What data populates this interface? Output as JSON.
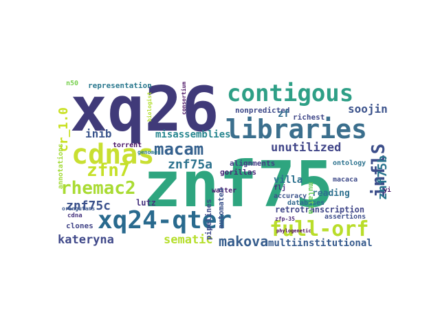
{
  "cloud": {
    "words": [
      {
        "text": "znf75",
        "color": "#2ea57f"
      },
      {
        "text": "xq26",
        "color": "#403a79"
      },
      {
        "text": "contigous",
        "color": "#2e9f86"
      },
      {
        "text": "libraries",
        "color": "#3b6f8d"
      },
      {
        "text": "cdnas",
        "color": "#c8df31"
      },
      {
        "text": "xq24-qter",
        "color": "#296a8e"
      },
      {
        "text": "full-orf",
        "color": "#b9dd2a"
      },
      {
        "text": "macam",
        "color": "#34608d"
      },
      {
        "text": "rhemac2",
        "color": "#a9db33"
      },
      {
        "text": "zfn7",
        "color": "#c5e028"
      },
      {
        "text": "inflS",
        "color": "#3c4e8a"
      },
      {
        "text": "znf75a",
        "color": "#2c728e"
      },
      {
        "text": "znf75b",
        "color": "#2b758e"
      },
      {
        "text": "znf75c",
        "color": "#3b518b"
      },
      {
        "text": "kateryna",
        "color": "#3f4889"
      },
      {
        "text": "makova",
        "color": "#365d8d"
      },
      {
        "text": "unutilized",
        "color": "#404588"
      },
      {
        "text": "sematic",
        "color": "#b5de2b"
      },
      {
        "text": "soojin",
        "color": "#3b528b"
      },
      {
        "text": "inib",
        "color": "#3a548c"
      },
      {
        "text": "misassemblies",
        "color": "#25858e"
      },
      {
        "text": "multiinstitutional",
        "color": "#375b8d"
      },
      {
        "text": "retrotranscription",
        "color": "#404688"
      },
      {
        "text": "representation",
        "color": "#2a788e"
      },
      {
        "text": "nonpredicted",
        "color": "#3e4989"
      },
      {
        "text": "alignments",
        "color": "#433d84"
      },
      {
        "text": "gorillas",
        "color": "#482677"
      },
      {
        "text": "villa",
        "color": "#2c718e"
      },
      {
        "text": "reading",
        "color": "#2d708e"
      },
      {
        "text": "richest",
        "color": "#3f4788"
      },
      {
        "text": "lutz",
        "color": "#46327e"
      },
      {
        "text": "zf",
        "color": "#2f6b8e"
      },
      {
        "text": "torrent",
        "color": "#471164"
      },
      {
        "text": "walter",
        "color": "#481c6e"
      },
      {
        "text": "clones",
        "color": "#414487"
      },
      {
        "text": "cdna",
        "color": "#46337e"
      },
      {
        "text": "orangutans",
        "color": "#39568c"
      },
      {
        "text": "pipelines",
        "color": "#3e4a89"
      },
      {
        "text": "automated",
        "color": "#3b528b"
      },
      {
        "text": "assertions",
        "color": "#3d4d8a"
      },
      {
        "text": "ontology",
        "color": "#2c728e"
      },
      {
        "text": "databases",
        "color": "#31688e"
      },
      {
        "text": "mulatta",
        "color": "#6ccd5a"
      },
      {
        "text": "macaca",
        "color": "#3e4a89"
      },
      {
        "text": "accuracy",
        "color": "#3b528b"
      },
      {
        "text": "flj",
        "color": "#46337e"
      },
      {
        "text": "cr_1.0",
        "color": "#c8e020"
      },
      {
        "text": "annotations",
        "color": "#a2da37"
      },
      {
        "text": "n50",
        "color": "#7ad151"
      },
      {
        "text": "biologist",
        "color": "#b2dd2d"
      },
      {
        "text": "consortium",
        "color": "#470d60"
      },
      {
        "text": "zfp-35",
        "color": "#482475"
      },
      {
        "text": "phylogenetic",
        "color": "#440154"
      },
      {
        "text": "genomes",
        "color": "#2a788e"
      },
      {
        "text": "yi",
        "color": "#481467"
      }
    ]
  }
}
